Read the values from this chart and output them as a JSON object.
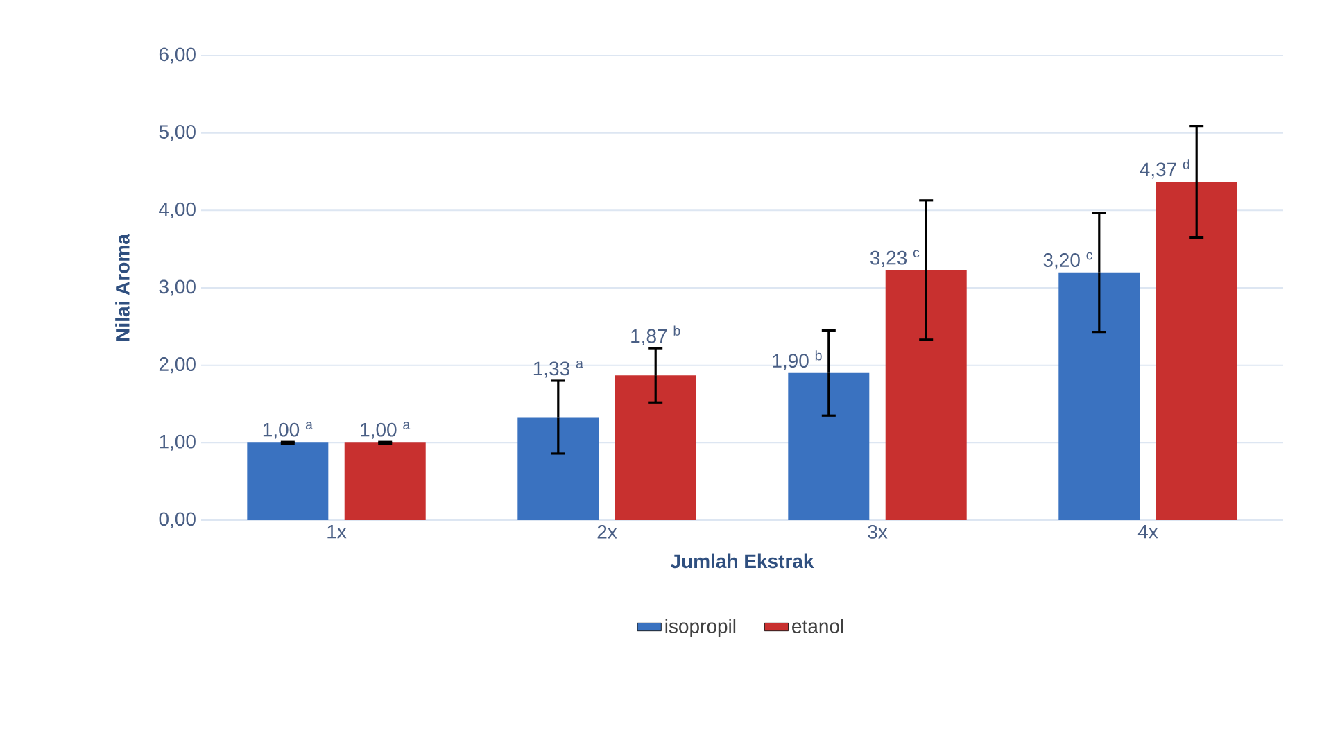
{
  "chart_data": {
    "type": "bar",
    "xlabel": "Jumlah Ekstrak",
    "ylabel": "Nilai Aroma",
    "categories": [
      "1x",
      "2x",
      "3x",
      "4x"
    ],
    "series": [
      {
        "name": "isopropil",
        "color": "#3a72c0",
        "values": [
          1.0,
          1.33,
          1.9,
          3.2
        ],
        "errors": [
          0.01,
          0.47,
          0.55,
          0.77
        ],
        "value_labels": [
          "1,00 $^{a}$",
          "1,33 $^{a}$",
          "1,90 $^{b}$",
          "3,20 $^{c}$"
        ]
      },
      {
        "name": "etanol",
        "color": "#c8302f",
        "values": [
          1.0,
          1.87,
          3.23,
          4.37
        ],
        "errors": [
          0.01,
          0.35,
          0.9,
          0.72
        ],
        "value_labels": [
          "1,00 $^{a}$",
          "1,87 $^{b}$",
          "3,23 $^{c}$",
          "4,37 $^{d}$"
        ]
      }
    ],
    "ylim": [
      0,
      6
    ],
    "yticks": [
      {
        "value": 0,
        "label": "0,00"
      },
      {
        "value": 1,
        "label": "1,00"
      },
      {
        "value": 2,
        "label": "2,00"
      },
      {
        "value": 3,
        "label": "3,00"
      },
      {
        "value": 4,
        "label": "4,00"
      },
      {
        "value": 5,
        "label": "5,00"
      },
      {
        "value": 6,
        "label": "6,00"
      }
    ],
    "grid": "y",
    "legend": "bottom"
  }
}
